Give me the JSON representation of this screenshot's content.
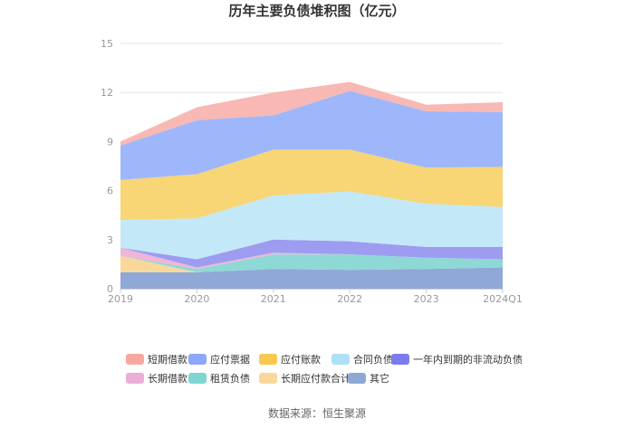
{
  "chart_data": {
    "type": "area",
    "stacked": true,
    "title": "历年主要负债堆积图（亿元）",
    "categories": [
      "2019",
      "2020",
      "2021",
      "2022",
      "2023",
      "2024Q1"
    ],
    "ylim": [
      0,
      15
    ],
    "yticks": [
      "0",
      "3",
      "6",
      "9",
      "12",
      "15"
    ],
    "grid": true,
    "legend_position": "bottom",
    "series": [
      {
        "name": "其它",
        "color": "#8FA8D6",
        "values": [
          1.0,
          1.0,
          1.2,
          1.15,
          1.2,
          1.3
        ]
      },
      {
        "name": "长期应付款合计",
        "color": "#F9D89A",
        "values": [
          1.0,
          0.0,
          0.0,
          0.0,
          0.0,
          0.0
        ]
      },
      {
        "name": "租赁负债",
        "color": "#8ED8D6",
        "values": [
          0.0,
          0.2,
          0.9,
          0.95,
          0.7,
          0.5
        ]
      },
      {
        "name": "长期借款",
        "color": "#EFB5D7",
        "values": [
          0.5,
          0.1,
          0.1,
          0.0,
          0.0,
          0.0
        ]
      },
      {
        "name": "一年内到期的非流动负债",
        "color": "#9D9CF0",
        "values": [
          0.0,
          0.5,
          0.8,
          0.8,
          0.65,
          0.75
        ]
      },
      {
        "name": "合同负债",
        "color": "#C3E8F8",
        "values": [
          1.7,
          2.5,
          2.7,
          3.05,
          2.65,
          2.45
        ]
      },
      {
        "name": "应付账款",
        "color": "#F8D575",
        "values": [
          2.45,
          2.7,
          2.8,
          2.55,
          2.2,
          2.45
        ]
      },
      {
        "name": "应付票据",
        "color": "#9EB7FB",
        "values": [
          2.1,
          3.3,
          2.1,
          3.6,
          3.45,
          3.35
        ]
      },
      {
        "name": "短期借款",
        "color": "#F8B8B3",
        "values": [
          0.25,
          0.8,
          1.4,
          0.55,
          0.4,
          0.6
        ]
      }
    ],
    "legend_order": [
      "短期借款",
      "应付票据",
      "应付账款",
      "合同负债",
      "一年内到期的非流动负债",
      "长期借款",
      "租赁负债",
      "长期应付款合计",
      "其它"
    ],
    "legend_colors": [
      "#F8A7A0",
      "#8DA8F8",
      "#F8C84F",
      "#AEE1F8",
      "#7B7BEE",
      "#E9AFD7",
      "#7ED5D1",
      "#F9D89A",
      "#8EA8D6"
    ]
  },
  "source_text": "数据来源：恒生聚源"
}
